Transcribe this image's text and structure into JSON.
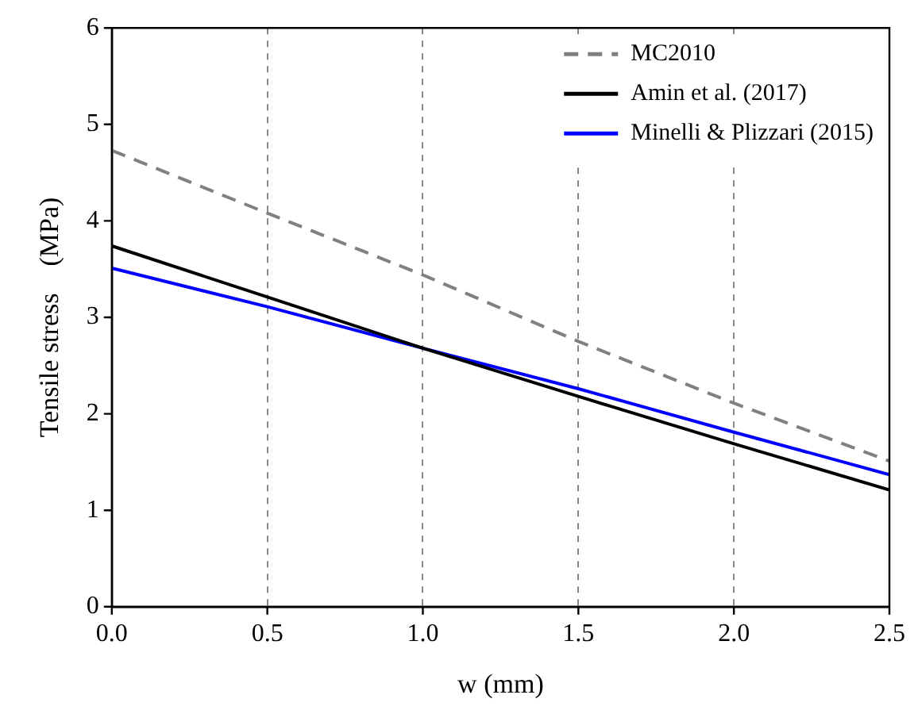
{
  "chart_data": {
    "type": "line",
    "xlabel": "w (mm)",
    "ylabel": "Tensile stress    (MPa)",
    "xlim": [
      0,
      2.5
    ],
    "xticks": [
      {
        "value": 0,
        "label": "0.0"
      },
      0.5,
      {
        "value": 1,
        "label": "1.0"
      },
      1.5,
      {
        "value": 2,
        "label": "2.0"
      },
      2.5
    ],
    "ylim": [
      0,
      6
    ],
    "yticks": [
      0,
      1,
      2,
      3,
      4,
      5,
      6
    ],
    "grid": "x",
    "legend": "top right",
    "marker": "none",
    "series": [
      {
        "name": "MC2010",
        "color": "#808080",
        "line_style": "dashed",
        "x": [
          0,
          0.5,
          1,
          1.5,
          2,
          2.5
        ],
        "values": [
          4.73,
          4.08,
          3.44,
          2.75,
          2.11,
          1.51
        ]
      },
      {
        "name": "Amin et al. (2017)",
        "color": "#000000",
        "line_style": "solid",
        "x": [
          0,
          0.5,
          1,
          1.5,
          2,
          2.5
        ],
        "values": [
          3.74,
          3.21,
          2.68,
          2.18,
          1.69,
          1.21
        ]
      },
      {
        "name": "Minelli & Plizzari (2015)",
        "color": "#0000ff",
        "line_style": "solid",
        "x": [
          0,
          0.5,
          1,
          1.5,
          2,
          2.5
        ],
        "values": [
          3.51,
          3.11,
          2.68,
          2.26,
          1.81,
          1.37
        ]
      }
    ]
  }
}
